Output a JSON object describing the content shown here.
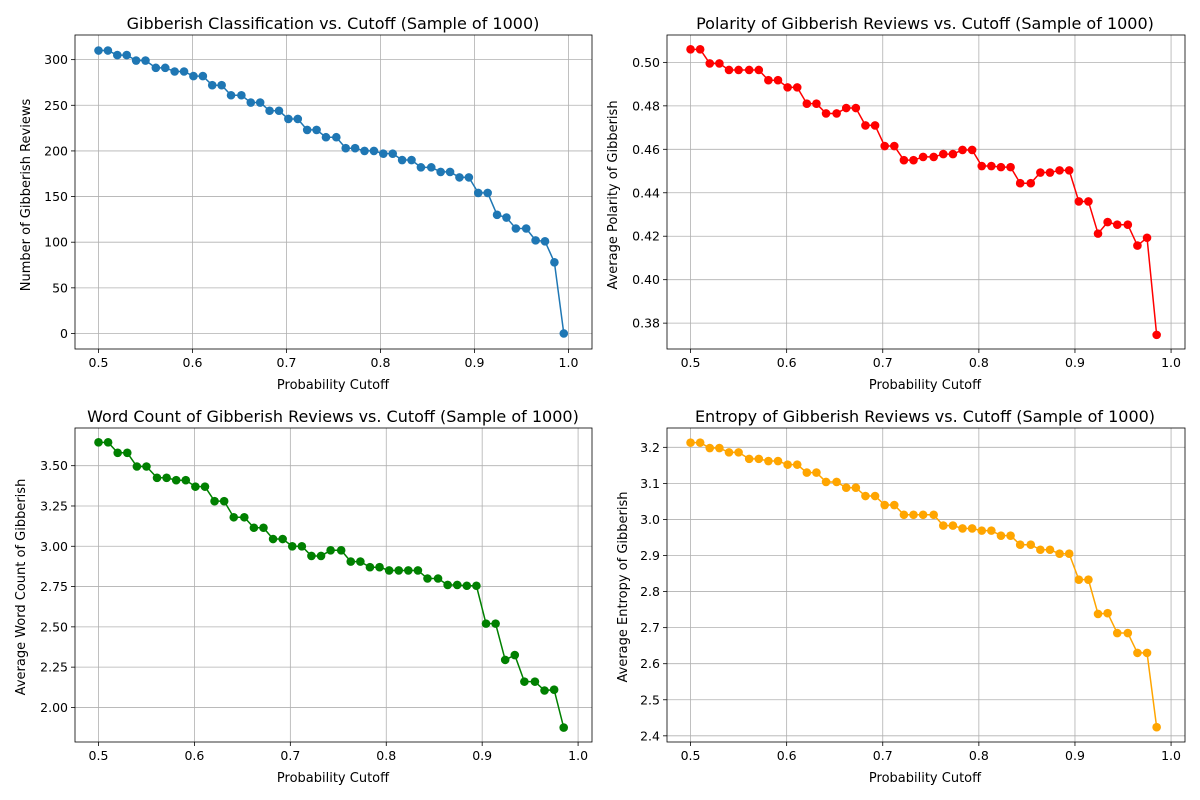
{
  "chart_data": [
    {
      "type": "line",
      "title": "Gibberish Classification vs. Cutoff (Sample of 1000)",
      "xlabel": "Probability Cutoff",
      "ylabel": "Number of Gibberish Reviews",
      "color": "#1f77b4",
      "grid": true,
      "xlim": [
        0.475,
        1.025
      ],
      "ylim": [
        -17,
        327
      ],
      "xticks": [
        0.5,
        0.6,
        0.7,
        0.8,
        0.9,
        1.0
      ],
      "xtick_labels": [
        "0.5",
        "0.6",
        "0.7",
        "0.8",
        "0.9",
        "1.0"
      ],
      "yticks": [
        0,
        50,
        100,
        150,
        200,
        250,
        300
      ],
      "ytick_labels": [
        "0",
        "50",
        "100",
        "150",
        "200",
        "250",
        "300"
      ],
      "series": [
        {
          "name": "Number of Gibberish Reviews",
          "x": [
            0.5,
            0.51,
            0.52,
            0.53,
            0.54,
            0.55,
            0.561,
            0.571,
            0.581,
            0.591,
            0.601,
            0.611,
            0.621,
            0.631,
            0.641,
            0.652,
            0.662,
            0.672,
            0.682,
            0.692,
            0.702,
            0.712,
            0.722,
            0.732,
            0.742,
            0.753,
            0.763,
            0.773,
            0.783,
            0.793,
            0.803,
            0.813,
            0.823,
            0.833,
            0.843,
            0.854,
            0.864,
            0.874,
            0.884,
            0.894,
            0.904,
            0.914,
            0.924,
            0.934,
            0.944,
            0.955,
            0.965,
            0.975,
            0.985,
            0.995
          ],
          "y": [
            310,
            310,
            305,
            305,
            299,
            299,
            291,
            291,
            287,
            287,
            282,
            282,
            272,
            272,
            261,
            261,
            253,
            253,
            244,
            244,
            235,
            235,
            223,
            223,
            215,
            215,
            203,
            203,
            200,
            200,
            197,
            197,
            190,
            190,
            182,
            182,
            177,
            177,
            171,
            171,
            154,
            154,
            130,
            127,
            115,
            115,
            102,
            101,
            78,
            0
          ]
        }
      ]
    },
    {
      "type": "line",
      "title": "Polarity of Gibberish Reviews vs. Cutoff (Sample of 1000)",
      "xlabel": "Probability Cutoff",
      "ylabel": "Average Polarity of Gibberish",
      "color": "#ff0000",
      "grid": true,
      "xlim": [
        0.4755,
        1.0145
      ],
      "ylim": [
        0.3681,
        0.5126
      ],
      "xticks": [
        0.5,
        0.6,
        0.7,
        0.8,
        0.9,
        1.0
      ],
      "xtick_labels": [
        "0.5",
        "0.6",
        "0.7",
        "0.8",
        "0.9",
        "1.0"
      ],
      "yticks": [
        0.38,
        0.4,
        0.42,
        0.44,
        0.46,
        0.48,
        0.5
      ],
      "ytick_labels": [
        "0.38",
        "0.40",
        "0.42",
        "0.44",
        "0.46",
        "0.48",
        "0.50"
      ],
      "series": [
        {
          "name": "Average Polarity of Gibberish",
          "x": [
            0.5,
            0.51,
            0.52,
            0.53,
            0.54,
            0.55,
            0.561,
            0.571,
            0.581,
            0.591,
            0.601,
            0.611,
            0.621,
            0.631,
            0.641,
            0.652,
            0.662,
            0.672,
            0.682,
            0.692,
            0.702,
            0.712,
            0.722,
            0.732,
            0.742,
            0.753,
            0.763,
            0.773,
            0.783,
            0.793,
            0.803,
            0.813,
            0.823,
            0.833,
            0.843,
            0.854,
            0.864,
            0.874,
            0.884,
            0.894,
            0.904,
            0.914,
            0.924,
            0.934,
            0.944,
            0.955,
            0.965,
            0.975,
            0.985
          ],
          "y": [
            0.506,
            0.506,
            0.4995,
            0.4995,
            0.4965,
            0.4965,
            0.4965,
            0.4965,
            0.4918,
            0.4918,
            0.4885,
            0.4885,
            0.481,
            0.481,
            0.4765,
            0.4765,
            0.479,
            0.479,
            0.471,
            0.471,
            0.4615,
            0.4615,
            0.455,
            0.455,
            0.4565,
            0.4565,
            0.4578,
            0.4578,
            0.4597,
            0.4597,
            0.4523,
            0.4523,
            0.4518,
            0.4518,
            0.4444,
            0.4444,
            0.4493,
            0.4493,
            0.4503,
            0.4503,
            0.436,
            0.436,
            0.4212,
            0.4265,
            0.4253,
            0.4253,
            0.4157,
            0.4193,
            0.3746
          ]
        }
      ]
    },
    {
      "type": "line",
      "title": "Word Count of Gibberish Reviews vs. Cutoff (Sample of 1000)",
      "xlabel": "Probability Cutoff",
      "ylabel": "Average Word Count of Gibberish",
      "color": "#008000",
      "grid": true,
      "xlim": [
        0.4755,
        1.0145
      ],
      "ylim": [
        1.7855,
        3.7339
      ],
      "xticks": [
        0.5,
        0.6,
        0.7,
        0.8,
        0.9,
        1.0
      ],
      "xtick_labels": [
        "0.5",
        "0.6",
        "0.7",
        "0.8",
        "0.9",
        "1.0"
      ],
      "yticks": [
        2.0,
        2.25,
        2.5,
        2.75,
        3.0,
        3.25,
        3.5
      ],
      "ytick_labels": [
        "2.00",
        "2.25",
        "2.50",
        "2.75",
        "3.00",
        "3.25",
        "3.50"
      ],
      "series": [
        {
          "name": "Average Word Count of Gibberish",
          "x": [
            0.5,
            0.51,
            0.52,
            0.53,
            0.54,
            0.55,
            0.561,
            0.571,
            0.581,
            0.591,
            0.601,
            0.611,
            0.621,
            0.631,
            0.641,
            0.652,
            0.662,
            0.672,
            0.682,
            0.692,
            0.702,
            0.712,
            0.722,
            0.732,
            0.742,
            0.753,
            0.763,
            0.773,
            0.783,
            0.793,
            0.803,
            0.813,
            0.823,
            0.833,
            0.843,
            0.854,
            0.864,
            0.874,
            0.884,
            0.894,
            0.904,
            0.914,
            0.924,
            0.934,
            0.944,
            0.955,
            0.965,
            0.975,
            0.985
          ],
          "y": [
            3.645,
            3.645,
            3.58,
            3.58,
            3.495,
            3.495,
            3.425,
            3.425,
            3.41,
            3.41,
            3.37,
            3.37,
            3.28,
            3.28,
            3.18,
            3.18,
            3.115,
            3.115,
            3.045,
            3.045,
            3.0,
            3.0,
            2.94,
            2.94,
            2.975,
            2.975,
            2.905,
            2.905,
            2.87,
            2.87,
            2.85,
            2.85,
            2.85,
            2.85,
            2.8,
            2.8,
            2.76,
            2.76,
            2.755,
            2.755,
            2.52,
            2.52,
            2.295,
            2.325,
            2.16,
            2.16,
            2.105,
            2.11,
            1.875
          ]
        }
      ]
    },
    {
      "type": "line",
      "title": "Entropy of Gibberish Reviews vs. Cutoff (Sample of 1000)",
      "xlabel": "Probability Cutoff",
      "ylabel": "Average Entropy of Gibberish",
      "color": "#ffa500",
      "grid": true,
      "xlim": [
        0.4755,
        1.0145
      ],
      "ylim": [
        2.3829,
        3.2536
      ],
      "xticks": [
        0.5,
        0.6,
        0.7,
        0.8,
        0.9,
        1.0
      ],
      "xtick_labels": [
        "0.5",
        "0.6",
        "0.7",
        "0.8",
        "0.9",
        "1.0"
      ],
      "yticks": [
        2.4,
        2.5,
        2.6,
        2.7,
        2.8,
        2.9,
        3.0,
        3.1,
        3.2
      ],
      "ytick_labels": [
        "2.4",
        "2.5",
        "2.6",
        "2.7",
        "2.8",
        "2.9",
        "3.0",
        "3.1",
        "3.2"
      ],
      "series": [
        {
          "name": "Average Entropy of Gibberish",
          "x": [
            0.5,
            0.51,
            0.52,
            0.53,
            0.54,
            0.55,
            0.561,
            0.571,
            0.581,
            0.591,
            0.601,
            0.611,
            0.621,
            0.631,
            0.641,
            0.652,
            0.662,
            0.672,
            0.682,
            0.692,
            0.702,
            0.712,
            0.722,
            0.732,
            0.742,
            0.753,
            0.763,
            0.773,
            0.783,
            0.793,
            0.803,
            0.813,
            0.823,
            0.833,
            0.843,
            0.854,
            0.864,
            0.874,
            0.884,
            0.894,
            0.904,
            0.914,
            0.924,
            0.934,
            0.944,
            0.955,
            0.965,
            0.975,
            0.985
          ],
          "y": [
            3.213,
            3.213,
            3.198,
            3.198,
            3.186,
            3.186,
            3.168,
            3.168,
            3.162,
            3.162,
            3.152,
            3.152,
            3.13,
            3.13,
            3.104,
            3.104,
            3.088,
            3.088,
            3.065,
            3.065,
            3.04,
            3.04,
            3.013,
            3.013,
            3.013,
            3.013,
            2.983,
            2.983,
            2.975,
            2.975,
            2.969,
            2.969,
            2.955,
            2.955,
            2.93,
            2.93,
            2.916,
            2.916,
            2.905,
            2.905,
            2.833,
            2.833,
            2.738,
            2.74,
            2.685,
            2.685,
            2.63,
            2.63,
            2.424
          ]
        }
      ]
    }
  ]
}
